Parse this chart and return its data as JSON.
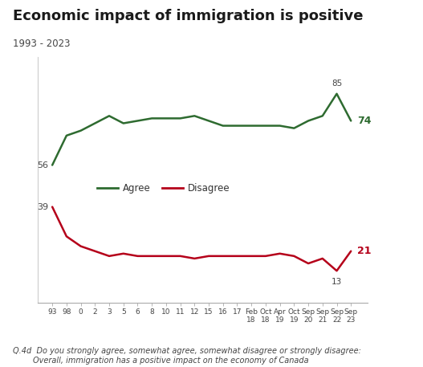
{
  "title": "Economic impact of immigration is positive",
  "subtitle": "1993 - 2023",
  "footnote_line1": "Q.4d  Do you strongly agree, somewhat agree, somewhat disagree or strongly disagree:",
  "footnote_line2": "        Overall, immigration has a positive impact on the economy of Canada",
  "x_labels": [
    "93",
    "98",
    "0",
    "2",
    "3",
    "5",
    "6",
    "8",
    "10",
    "11",
    "12",
    "15",
    "16",
    "17",
    "Feb\n18",
    "Oct\n18",
    "Apr\n19",
    "Oct\n19",
    "Sep\n20",
    "Sep\n21",
    "Sep\n22",
    "Sep\n23"
  ],
  "agree_values": [
    56,
    68,
    70,
    73,
    76,
    73,
    74,
    75,
    75,
    75,
    76,
    74,
    72,
    72,
    72,
    72,
    72,
    71,
    74,
    76,
    85,
    74
  ],
  "disagree_values": [
    39,
    27,
    23,
    21,
    19,
    20,
    19,
    19,
    19,
    19,
    18,
    19,
    19,
    19,
    19,
    19,
    20,
    19,
    16,
    18,
    13,
    21
  ],
  "agree_color": "#2e6b30",
  "disagree_color": "#b5001a",
  "legend_agree": "Agree",
  "legend_disagree": "Disagree",
  "ylim": [
    0,
    100
  ],
  "bg_color": "#ffffff",
  "title_fontsize": 13,
  "subtitle_fontsize": 8.5,
  "tick_fontsize": 6.5,
  "footnote_fontsize": 7,
  "agree_start_label": "56",
  "agree_end_label_peak": "85",
  "agree_end_label_last": "74",
  "disagree_start_label": "39",
  "disagree_end_label_peak": "13",
  "disagree_end_label_last": "21"
}
